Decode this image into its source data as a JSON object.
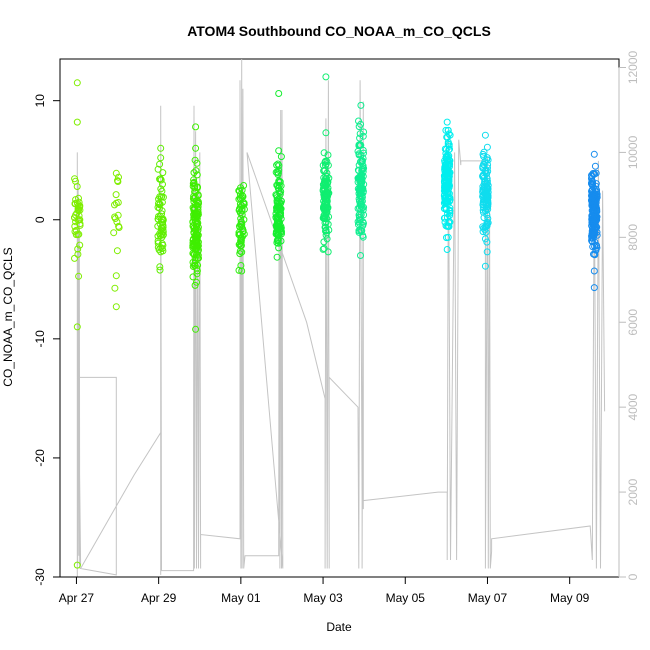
{
  "chart_data": {
    "type": "scatter",
    "title": "ATOM4 Southbound CO_NOAA_m_CO_QCLS",
    "xlabel": "Date",
    "ylabel": "CO_NOAA_m_CO_QCLS",
    "x_range_days": [
      -0.4,
      13.2
    ],
    "ylim": [
      -30,
      13.5
    ],
    "y2lim": [
      0,
      12200
    ],
    "x_ticks": [
      {
        "day": 0,
        "label": "Apr 27"
      },
      {
        "day": 2,
        "label": "Apr 29"
      },
      {
        "day": 4,
        "label": "May 01"
      },
      {
        "day": 6,
        "label": "May 03"
      },
      {
        "day": 8,
        "label": "May 05"
      },
      {
        "day": 10,
        "label": "May 07"
      },
      {
        "day": 12,
        "label": "May 09"
      }
    ],
    "y_ticks": [
      10,
      0,
      -10,
      -20,
      -30
    ],
    "y2_ticks": [
      0,
      2000,
      4000,
      6000,
      8000,
      10000,
      12000
    ],
    "clusters": [
      {
        "day": 0.02,
        "mean": 0.0,
        "sd": 1.9,
        "n": 40,
        "seed": 11,
        "color": "#7fee00",
        "extras": [
          11.5,
          8.2,
          -9.0,
          -29.0
        ]
      },
      {
        "day": 0.97,
        "mean": 0.5,
        "sd": 2.5,
        "n": 16,
        "seed": 12,
        "color": "#7fee00",
        "extras": [
          -7.3,
          -4.7,
          3.9
        ]
      },
      {
        "day": 2.05,
        "mean": 0.5,
        "sd": 2.0,
        "n": 60,
        "seed": 13,
        "color": "#60ee00",
        "extras": [
          6.0,
          5.2
        ]
      },
      {
        "day": 2.9,
        "mean": -0.5,
        "sd": 2.2,
        "n": 140,
        "seed": 14,
        "color": "#3fee00",
        "extras": [
          7.8,
          -9.2,
          6.0
        ]
      },
      {
        "day": 4.02,
        "mean": 0.0,
        "sd": 1.7,
        "n": 60,
        "seed": 15,
        "color": "#30ee10",
        "extras": [
          -4.3
        ]
      },
      {
        "day": 4.92,
        "mean": 0.8,
        "sd": 1.8,
        "n": 110,
        "seed": 16,
        "color": "#16ee30",
        "extras": [
          10.6,
          5.8
        ]
      },
      {
        "day": 6.07,
        "mean": 1.8,
        "sd": 1.8,
        "n": 120,
        "seed": 17,
        "color": "#10ee70",
        "extras": [
          12.0,
          7.3
        ]
      },
      {
        "day": 6.92,
        "mean": 3.0,
        "sd": 2.4,
        "n": 120,
        "seed": 18,
        "color": "#10ee90",
        "extras": [
          9.6
        ]
      },
      {
        "day": 9.02,
        "mean": 3.0,
        "sd": 1.8,
        "n": 170,
        "seed": 19,
        "color": "#00eeee",
        "extras": [
          8.2,
          -2.5
        ]
      },
      {
        "day": 9.95,
        "mean": 1.8,
        "sd": 1.8,
        "n": 110,
        "seed": 20,
        "color": "#10dcee",
        "extras": [
          7.1,
          -3.9
        ]
      },
      {
        "day": 12.6,
        "mean": 0.8,
        "sd": 1.7,
        "n": 190,
        "seed": 21,
        "color": "#168cee",
        "extras": [
          5.5,
          -5.7,
          -4.3
        ]
      }
    ],
    "altitude_path": [
      [
        0.02,
        0
      ],
      [
        0.02,
        10000
      ],
      [
        0.03,
        300
      ],
      [
        0.04,
        9300
      ],
      [
        0.06,
        500
      ],
      [
        0.07,
        8700
      ],
      [
        0.08,
        200
      ],
      [
        0.1,
        300
      ],
      [
        0.05,
        4700
      ],
      [
        0.97,
        4700
      ],
      [
        0.97,
        50
      ],
      [
        0.1,
        200
      ],
      [
        1.4,
        2400
      ],
      [
        2.05,
        3400
      ],
      [
        2.05,
        50
      ],
      [
        2.05,
        11100
      ],
      [
        2.07,
        150
      ],
      [
        2.85,
        150
      ],
      [
        2.85,
        3400
      ],
      [
        2.86,
        11100
      ],
      [
        2.87,
        200
      ],
      [
        2.9,
        10500
      ],
      [
        2.92,
        200
      ],
      [
        2.95,
        9200
      ],
      [
        2.97,
        200
      ],
      [
        3.0,
        10000
      ],
      [
        3.02,
        200
      ],
      [
        3.02,
        1000
      ],
      [
        3.98,
        900
      ],
      [
        3.98,
        11700
      ],
      [
        4.0,
        200
      ],
      [
        4.02,
        12200
      ],
      [
        4.03,
        200
      ],
      [
        4.05,
        11500
      ],
      [
        4.07,
        200
      ],
      [
        4.1,
        500
      ],
      [
        4.92,
        500
      ],
      [
        4.93,
        9600
      ],
      [
        4.95,
        200
      ],
      [
        4.97,
        11000
      ],
      [
        4.99,
        200
      ],
      [
        5.0,
        11000
      ],
      [
        5.02,
        200
      ],
      [
        4.15,
        10000
      ],
      [
        5.6,
        6000
      ],
      [
        6.05,
        4200
      ],
      [
        6.05,
        200
      ],
      [
        6.07,
        10800
      ],
      [
        6.1,
        200
      ],
      [
        6.13,
        11700
      ],
      [
        6.15,
        200
      ],
      [
        6.15,
        4700
      ],
      [
        6.85,
        4000
      ],
      [
        6.87,
        200
      ],
      [
        6.9,
        11700
      ],
      [
        6.95,
        1800
      ],
      [
        6.95,
        200
      ],
      [
        6.98,
        11200
      ],
      [
        6.98,
        1600
      ],
      [
        6.98,
        1800
      ],
      [
        8.8,
        2000
      ],
      [
        9.02,
        2000
      ],
      [
        9.02,
        400
      ],
      [
        9.05,
        10500
      ],
      [
        9.1,
        400
      ],
      [
        9.2,
        10000
      ],
      [
        9.25,
        400
      ],
      [
        9.3,
        10300
      ],
      [
        9.35,
        9700
      ],
      [
        9.35,
        9800
      ],
      [
        9.95,
        9800
      ],
      [
        9.95,
        200
      ],
      [
        10.0,
        9900
      ],
      [
        10.02,
        200
      ],
      [
        10.05,
        9500
      ],
      [
        10.07,
        200
      ],
      [
        10.1,
        600
      ],
      [
        10.1,
        900
      ],
      [
        12.5,
        1200
      ],
      [
        12.55,
        400
      ],
      [
        12.6,
        9600
      ],
      [
        12.65,
        200
      ],
      [
        12.7,
        9800
      ],
      [
        12.75,
        200
      ],
      [
        12.8,
        9100
      ],
      [
        12.85,
        3900
      ]
    ]
  }
}
